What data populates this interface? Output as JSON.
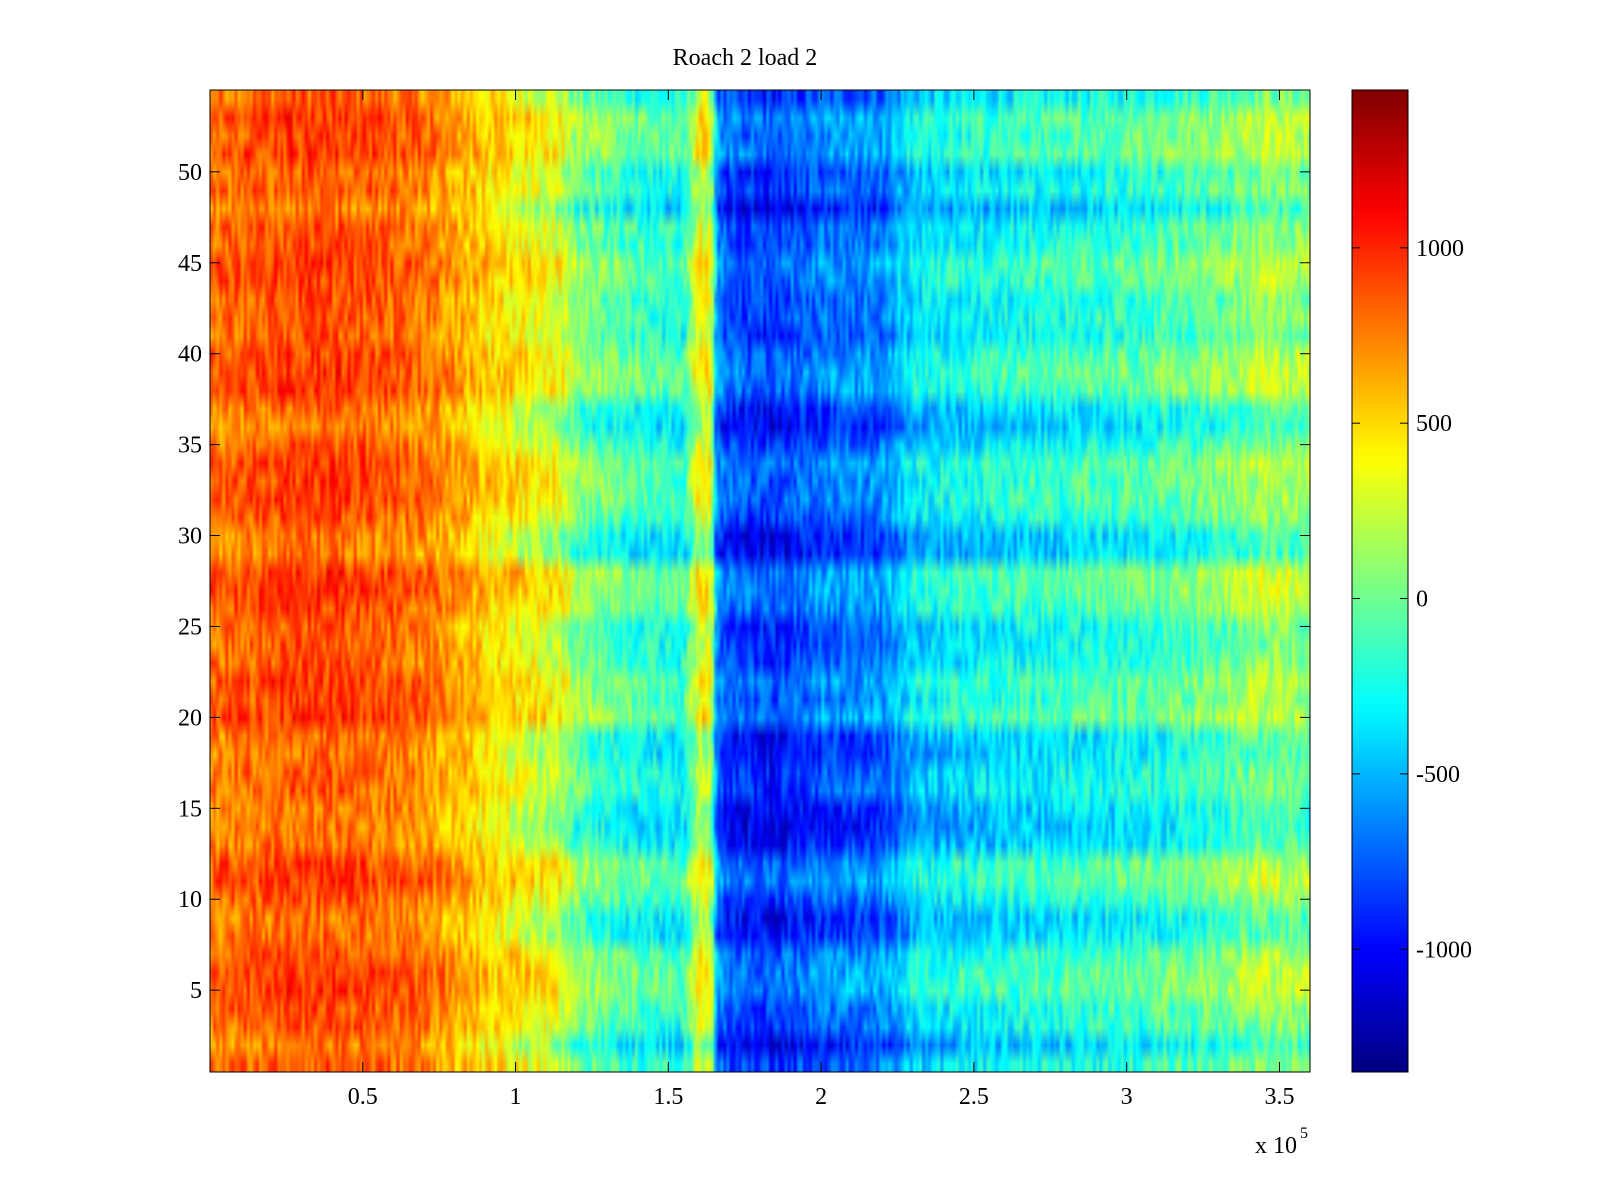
{
  "chart_data": {
    "type": "heatmap",
    "title": "Roach 2 load 2",
    "xlabel": "",
    "ylabel": "",
    "x_multiplier_label": {
      "base": "x 10",
      "exponent": "5"
    },
    "xlim": [
      0,
      3.6
    ],
    "ylim": [
      0.5,
      54.5
    ],
    "x_ticks": [
      0.5,
      1,
      1.5,
      2,
      2.5,
      3,
      3.5
    ],
    "x_tick_labels": [
      "0.5",
      "1",
      "1.5",
      "2",
      "2.5",
      "3",
      "3.5"
    ],
    "y_ticks": [
      5,
      10,
      15,
      20,
      25,
      30,
      35,
      40,
      45,
      50
    ],
    "y_tick_labels": [
      "5",
      "10",
      "15",
      "20",
      "25",
      "30",
      "35",
      "40",
      "45",
      "50"
    ],
    "rows": 54,
    "columns": 360,
    "colormap": "jet",
    "clim": [
      -1350,
      1450
    ],
    "colorbar_ticks": [
      1000,
      500,
      0,
      -500,
      -1000
    ],
    "colorbar_tick_labels": [
      "1000",
      "500",
      "0",
      "-500",
      "-1000"
    ],
    "intensity_profile": {
      "description": "approximate mean value along x (units of 10^5) before noise",
      "x": [
        0,
        0.3,
        0.5,
        0.7,
        0.85,
        1.0,
        1.15,
        1.2,
        1.4,
        1.55,
        1.6,
        1.64,
        1.66,
        1.75,
        1.85,
        2.0,
        2.2,
        2.3,
        2.6,
        3.0,
        3.3,
        3.45,
        3.6
      ],
      "values": [
        780,
        880,
        850,
        750,
        560,
        380,
        250,
        0,
        -180,
        -250,
        300,
        250,
        -750,
        -870,
        -900,
        -750,
        -700,
        -420,
        -300,
        -200,
        -60,
        80,
        20
      ]
    },
    "row_modulation": {
      "description": "per-row offset relative to mean (rows 1..54)",
      "strong_rows": [
        32,
        33,
        34,
        38,
        39,
        40,
        44,
        45,
        51,
        52,
        53,
        20,
        21,
        22,
        26,
        27,
        28,
        11,
        12,
        5,
        6,
        7
      ],
      "weak_rows": [
        2,
        8,
        9,
        13,
        14,
        15,
        18,
        19,
        29,
        30,
        36,
        37,
        48
      ]
    }
  }
}
